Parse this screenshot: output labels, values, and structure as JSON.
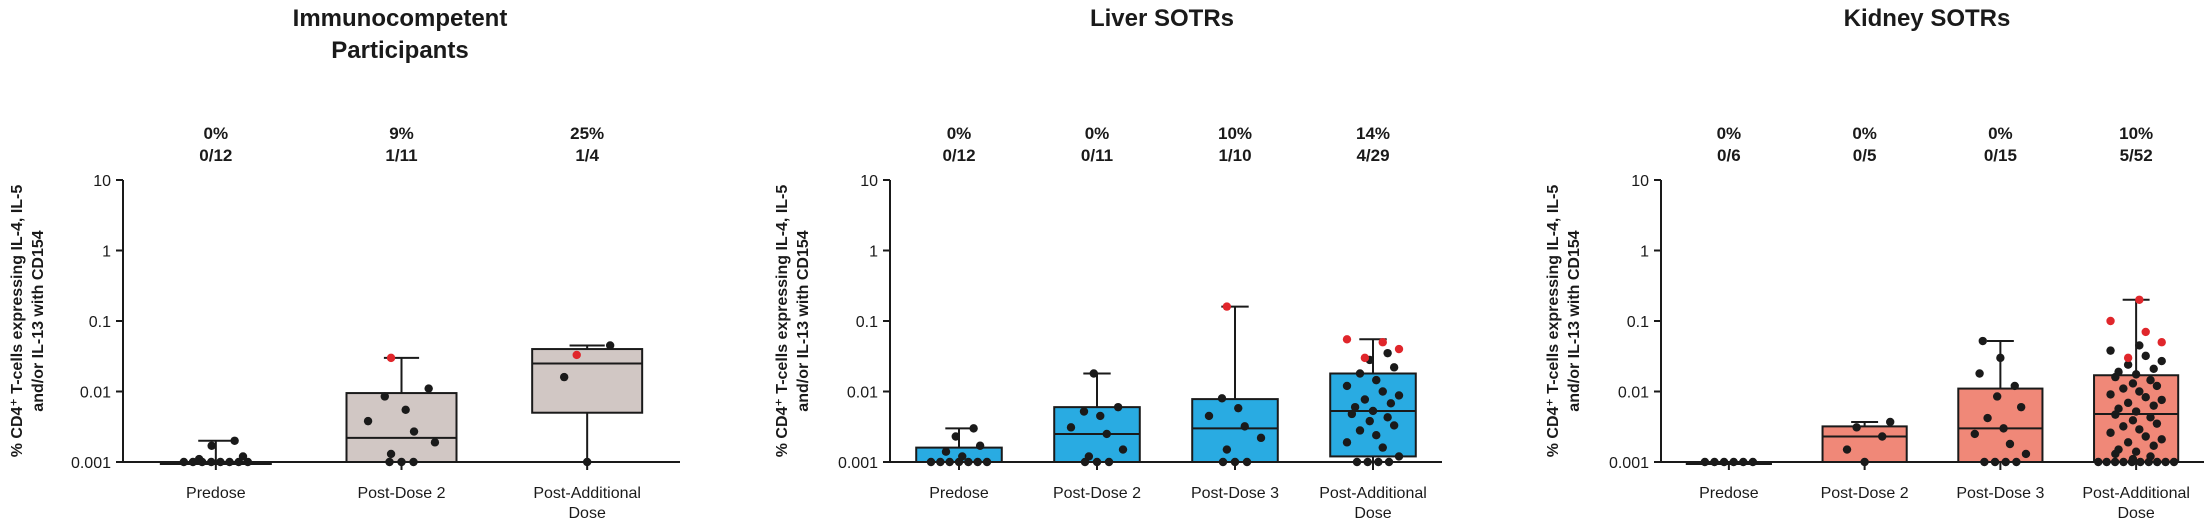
{
  "figure": {
    "width_label": "",
    "colors": {
      "axis": "#1a1a1a",
      "point": "#1a1a1a",
      "responder": "#e0262b"
    }
  },
  "chart_data": [
    {
      "type": "box",
      "title": "Immunocompetent Participants",
      "title_lines": [
        "Immunocompetent",
        "Participants"
      ],
      "ylabel_lines": [
        "% CD4⁺ T-cells expressing IL-4, IL-5",
        "and/or IL-13 with CD154"
      ],
      "yscale": "log",
      "ylim": [
        0.001,
        10
      ],
      "yticks": [
        "10",
        "1",
        "0.1",
        "0.01",
        "0.001"
      ],
      "box_color": "#d1c7c4",
      "groups": [
        {
          "label_lines": [
            "Predose"
          ],
          "percent": "0%",
          "fraction": "0/12",
          "min": 0.001,
          "q1": 0.001,
          "median": 0.001,
          "q3": 0.001,
          "max": 0.002,
          "points": [
            0.001,
            0.001,
            0.001,
            0.001,
            0.001,
            0.001,
            0.001,
            0.001,
            0.0011,
            0.0012,
            0.0017,
            0.002
          ],
          "responders": []
        },
        {
          "label_lines": [
            "Post-Dose 2"
          ],
          "percent": "9%",
          "fraction": "1/11",
          "min": 0.001,
          "q1": 0.001,
          "median": 0.0022,
          "q3": 0.0095,
          "max": 0.03,
          "points": [
            0.001,
            0.001,
            0.001,
            0.0013,
            0.0019,
            0.0027,
            0.0038,
            0.0055,
            0.0085,
            0.011
          ],
          "responders": [
            0.03
          ]
        },
        {
          "label_lines": [
            "Post-Additional",
            "Dose"
          ],
          "percent": "25%",
          "fraction": "1/4",
          "min": 0.001,
          "q1": 0.005,
          "median": 0.025,
          "q3": 0.04,
          "max": 0.045,
          "points": [
            0.001,
            0.016,
            0.045
          ],
          "responders": [
            0.033
          ]
        }
      ]
    },
    {
      "type": "box",
      "title": "Liver SOTRs",
      "title_lines": [
        "Liver SOTRs"
      ],
      "ylabel_lines": [
        "% CD4⁺ T-cells expressing IL-4, IL-5",
        "and/or IL-13 with CD154"
      ],
      "yscale": "log",
      "ylim": [
        0.001,
        10
      ],
      "yticks": [
        "10",
        "1",
        "0.1",
        "0.01",
        "0.001"
      ],
      "box_color": "#29abe2",
      "groups": [
        {
          "label_lines": [
            "Predose"
          ],
          "percent": "0%",
          "fraction": "0/12",
          "min": 0.001,
          "q1": 0.001,
          "median": 0.001,
          "q3": 0.0016,
          "max": 0.003,
          "points": [
            0.001,
            0.001,
            0.001,
            0.001,
            0.001,
            0.001,
            0.001,
            0.0012,
            0.0014,
            0.0017,
            0.0023,
            0.003
          ],
          "responders": []
        },
        {
          "label_lines": [
            "Post-Dose 2"
          ],
          "percent": "0%",
          "fraction": "0/11",
          "min": 0.001,
          "q1": 0.001,
          "median": 0.0025,
          "q3": 0.006,
          "max": 0.018,
          "points": [
            0.001,
            0.001,
            0.001,
            0.0012,
            0.0015,
            0.0025,
            0.0031,
            0.0045,
            0.0052,
            0.006,
            0.018
          ],
          "responders": []
        },
        {
          "label_lines": [
            "Post-Dose 3"
          ],
          "percent": "10%",
          "fraction": "1/10",
          "min": 0.001,
          "q1": 0.001,
          "median": 0.003,
          "q3": 0.0078,
          "max": 0.16,
          "points": [
            0.001,
            0.001,
            0.001,
            0.0015,
            0.0022,
            0.0032,
            0.0045,
            0.0058,
            0.008
          ],
          "responders": [
            0.16
          ]
        },
        {
          "label_lines": [
            "Post-Additional",
            "Dose"
          ],
          "percent": "14%",
          "fraction": "4/29",
          "min": 0.001,
          "q1": 0.0012,
          "median": 0.0053,
          "q3": 0.018,
          "max": 0.055,
          "points": [
            0.001,
            0.001,
            0.001,
            0.001,
            0.0012,
            0.0016,
            0.0019,
            0.0024,
            0.0028,
            0.0033,
            0.0038,
            0.0043,
            0.0048,
            0.0053,
            0.006,
            0.0068,
            0.0077,
            0.0088,
            0.01,
            0.012,
            0.0145,
            0.018,
            0.022,
            0.028,
            0.035
          ],
          "responders": [
            0.03,
            0.04,
            0.05,
            0.055
          ]
        }
      ]
    },
    {
      "type": "box",
      "title": "Kidney SOTRs",
      "title_lines": [
        "Kidney SOTRs"
      ],
      "ylabel_lines": [
        "% CD4⁺ T-cells expressing IL-4, IL-5",
        "and/or IL-13 with CD154"
      ],
      "yscale": "log",
      "ylim": [
        0.001,
        10
      ],
      "yticks": [
        "10",
        "1",
        "0.1",
        "0.01",
        "0.001"
      ],
      "box_color": "#f08878",
      "groups": [
        {
          "label_lines": [
            "Predose"
          ],
          "percent": "0%",
          "fraction": "0/6",
          "min": 0.001,
          "q1": 0.001,
          "median": 0.001,
          "q3": 0.001,
          "max": 0.001,
          "points": [
            0.001,
            0.001,
            0.001,
            0.001,
            0.001,
            0.001
          ],
          "responders": []
        },
        {
          "label_lines": [
            "Post-Dose 2"
          ],
          "percent": "0%",
          "fraction": "0/5",
          "min": 0.001,
          "q1": 0.001,
          "median": 0.0023,
          "q3": 0.0032,
          "max": 0.0037,
          "points": [
            0.001,
            0.0015,
            0.0023,
            0.0031,
            0.0037
          ],
          "responders": []
        },
        {
          "label_lines": [
            "Post-Dose 3"
          ],
          "percent": "0%",
          "fraction": "0/15",
          "min": 0.001,
          "q1": 0.001,
          "median": 0.003,
          "q3": 0.011,
          "max": 0.052,
          "points": [
            0.001,
            0.001,
            0.001,
            0.001,
            0.0013,
            0.0018,
            0.0025,
            0.003,
            0.0042,
            0.006,
            0.0085,
            0.012,
            0.018,
            0.03,
            0.052
          ],
          "responders": []
        },
        {
          "label_lines": [
            "Post-Additional",
            "Dose"
          ],
          "percent": "10%",
          "fraction": "5/52",
          "min": 0.001,
          "q1": 0.001,
          "median": 0.0048,
          "q3": 0.017,
          "max": 0.2,
          "points": [
            0.001,
            0.001,
            0.001,
            0.001,
            0.001,
            0.001,
            0.001,
            0.001,
            0.001,
            0.001,
            0.0011,
            0.0012,
            0.0013,
            0.0014,
            0.0015,
            0.0017,
            0.0019,
            0.0021,
            0.0023,
            0.0026,
            0.0029,
            0.0032,
            0.0035,
            0.0039,
            0.0043,
            0.0047,
            0.0052,
            0.0057,
            0.0063,
            0.0069,
            0.0076,
            0.0083,
            0.0091,
            0.01,
            0.011,
            0.012,
            0.013,
            0.0145,
            0.016,
            0.0175,
            0.019,
            0.021,
            0.024,
            0.027,
            0.032,
            0.038,
            0.045
          ],
          "responders": [
            0.03,
            0.05,
            0.07,
            0.1,
            0.2
          ]
        }
      ]
    }
  ]
}
